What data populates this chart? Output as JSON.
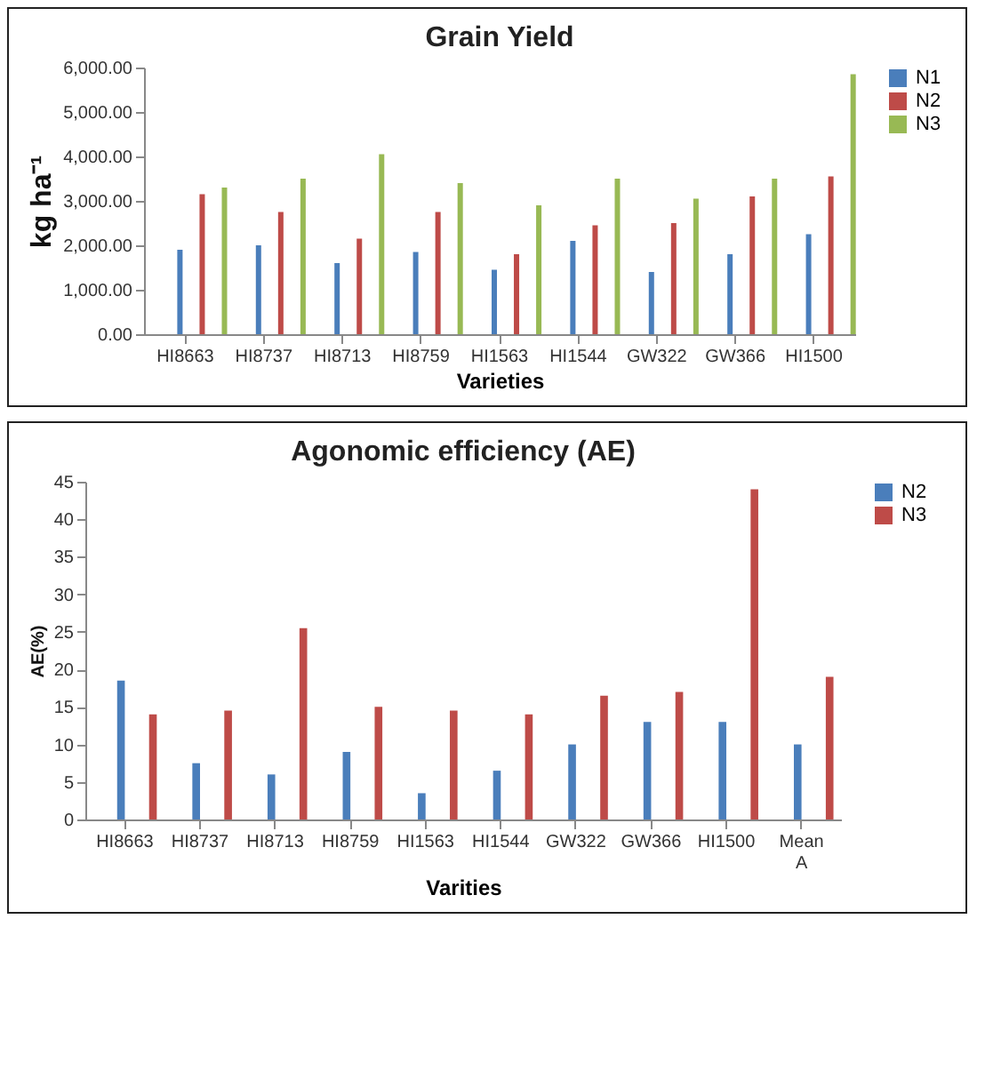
{
  "chart_data": [
    {
      "type": "bar",
      "title": "Grain Yield",
      "xlabel": "Varieties",
      "ylabel": "kg ha⁻¹",
      "categories": [
        "HI8663",
        "HI8737",
        "HI8713",
        "HI8759",
        "HI1563",
        "HI1544",
        "GW322",
        "GW366",
        "HI1500"
      ],
      "series": [
        {
          "name": "N1",
          "color": "#4a7ebb",
          "values": [
            1900,
            2000,
            1600,
            1850,
            1450,
            2100,
            1400,
            1800,
            2250
          ]
        },
        {
          "name": "N2",
          "color": "#be4b48",
          "values": [
            3150,
            2750,
            2150,
            2750,
            1800,
            2450,
            2500,
            3100,
            3550
          ]
        },
        {
          "name": "N3",
          "color": "#98b954",
          "values": [
            3300,
            3500,
            4050,
            3400,
            2900,
            3500,
            3050,
            3500,
            5850
          ]
        }
      ],
      "ylim": [
        0,
        6000
      ],
      "yticks": [
        {
          "value": 0,
          "label": "0.00"
        },
        {
          "value": 1000,
          "label": "1,000.00"
        },
        {
          "value": 2000,
          "label": "2,000.00"
        },
        {
          "value": 3000,
          "label": "3,000.00"
        },
        {
          "value": 4000,
          "label": "4,000.00"
        },
        {
          "value": 5000,
          "label": "5,000.00"
        },
        {
          "value": 6000,
          "label": "6,000.00"
        }
      ],
      "legend": "right"
    },
    {
      "type": "bar",
      "title": "Agonomic efficiency (AE)",
      "xlabel": "Varities",
      "ylabel": "AE(%)",
      "categories": [
        "HI8663",
        "HI8737",
        "HI8713",
        "HI8759",
        "HI1563",
        "HI1544",
        "GW322",
        "GW366",
        "HI1500",
        "Mean A"
      ],
      "series": [
        {
          "name": "N2",
          "color": "#4a7ebb",
          "values": [
            18.5,
            7.5,
            6,
            9,
            3.5,
            6.5,
            10,
            13,
            13,
            10
          ]
        },
        {
          "name": "N3",
          "color": "#be4b48",
          "values": [
            14,
            14.5,
            25.5,
            15,
            14.5,
            14,
            16.5,
            17,
            44,
            19
          ]
        }
      ],
      "ylim": [
        0,
        45
      ],
      "yticks": [
        0,
        5,
        10,
        15,
        20,
        25,
        30,
        35,
        40,
        45
      ],
      "legend": "right"
    }
  ]
}
